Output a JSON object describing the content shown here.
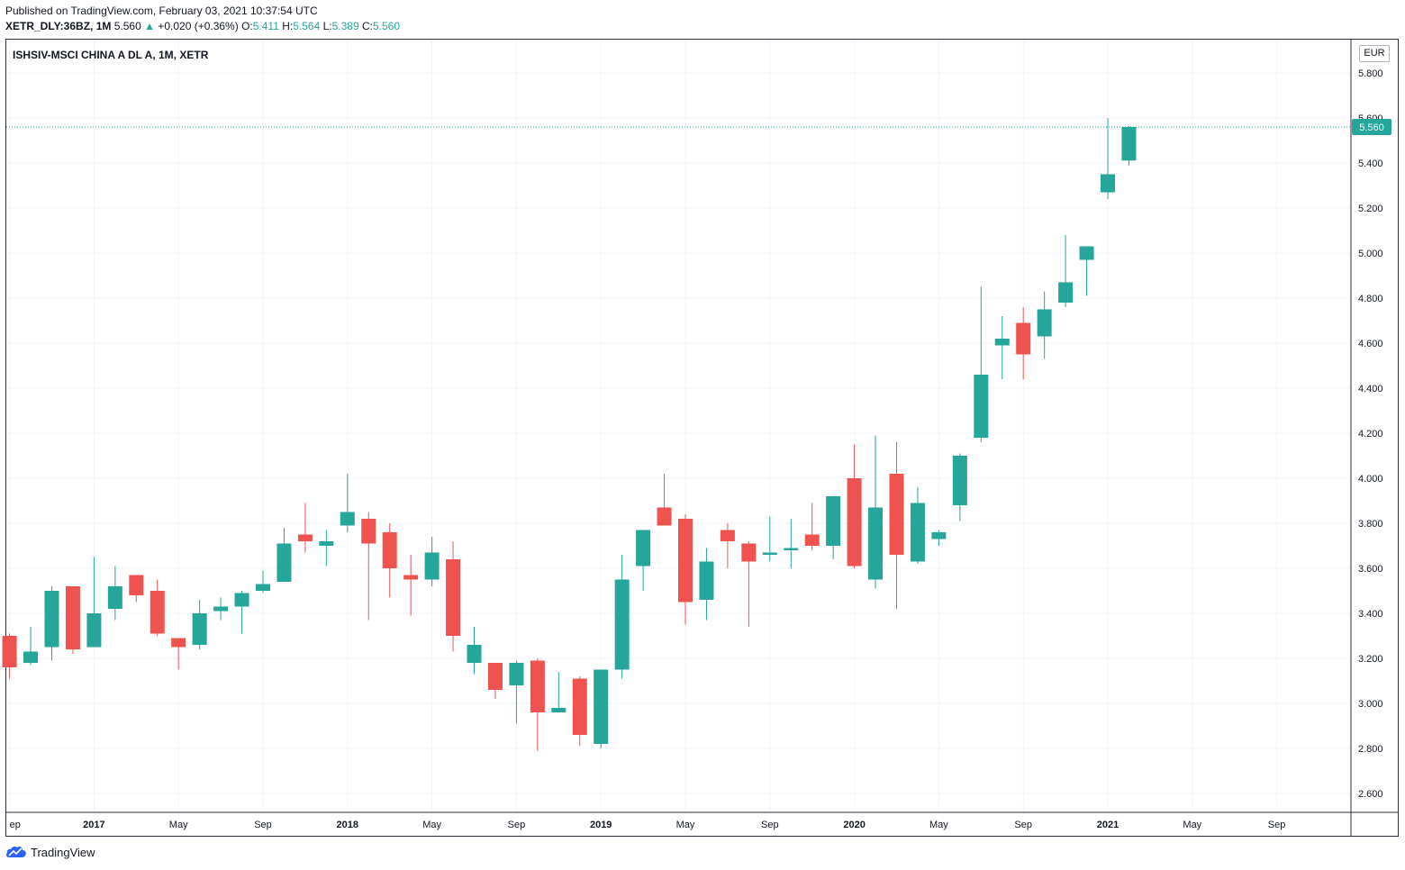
{
  "header": {
    "published": "Published on TradingView.com, February 03, 2021 10:37:54 UTC",
    "symbol": "XETR_DLY:36BZ, 1M",
    "last": "5.560",
    "change": "+0.020 (+0.36%)",
    "o_label": "O:",
    "o_value": "5.411",
    "h_label": "H:",
    "h_value": "5.564",
    "l_label": "L:",
    "l_value": "5.389",
    "c_label": "C:",
    "c_value": "5.560"
  },
  "footer": {
    "brand": "TradingView"
  },
  "colors": {
    "up": "#26a69a",
    "down": "#ef5350",
    "grid": "#f0f3fa",
    "axis": "#131722",
    "price_line": "#26a69a"
  },
  "chart_data": {
    "type": "candlestick",
    "title": "ISHSIV-MSCI CHINA A DL A, 1M, XETR",
    "currency": "EUR",
    "interval": "1M",
    "last_price": "5.560",
    "ylim": [
      2.5,
      5.9
    ],
    "y_ticks": [
      "2.600",
      "2.800",
      "3.000",
      "3.200",
      "3.400",
      "3.600",
      "3.800",
      "4.000",
      "4.200",
      "4.400",
      "4.600",
      "4.800",
      "5.000",
      "5.200",
      "5.400",
      "5.600",
      "5.800"
    ],
    "x_ticks": [
      {
        "label": "ep",
        "month": "2016-09",
        "bold": false
      },
      {
        "label": "2017",
        "month": "2017-01",
        "bold": true
      },
      {
        "label": "May",
        "month": "2017-05",
        "bold": false
      },
      {
        "label": "Sep",
        "month": "2017-09",
        "bold": false
      },
      {
        "label": "2018",
        "month": "2018-01",
        "bold": true
      },
      {
        "label": "May",
        "month": "2018-05",
        "bold": false
      },
      {
        "label": "Sep",
        "month": "2018-09",
        "bold": false
      },
      {
        "label": "2019",
        "month": "2019-01",
        "bold": true
      },
      {
        "label": "May",
        "month": "2019-05",
        "bold": false
      },
      {
        "label": "Sep",
        "month": "2019-09",
        "bold": false
      },
      {
        "label": "2020",
        "month": "2020-01",
        "bold": true
      },
      {
        "label": "May",
        "month": "2020-05",
        "bold": false
      },
      {
        "label": "Sep",
        "month": "2020-09",
        "bold": false
      },
      {
        "label": "2021",
        "month": "2021-01",
        "bold": true
      },
      {
        "label": "May",
        "month": "2021-05",
        "bold": false
      },
      {
        "label": "Sep",
        "month": "2021-09",
        "bold": false
      }
    ],
    "candles": [
      {
        "month": "2016-09",
        "o": 3.3,
        "h": 3.31,
        "l": 3.11,
        "c": 3.16
      },
      {
        "month": "2016-10",
        "o": 3.18,
        "h": 3.34,
        "l": 3.17,
        "c": 3.23
      },
      {
        "month": "2016-11",
        "o": 3.25,
        "h": 3.52,
        "l": 3.19,
        "c": 3.5
      },
      {
        "month": "2016-12",
        "o": 3.52,
        "h": 3.52,
        "l": 3.22,
        "c": 3.24
      },
      {
        "month": "2017-01",
        "o": 3.25,
        "h": 3.65,
        "l": 3.25,
        "c": 3.4
      },
      {
        "month": "2017-02",
        "o": 3.42,
        "h": 3.61,
        "l": 3.37,
        "c": 3.52
      },
      {
        "month": "2017-03",
        "o": 3.57,
        "h": 3.57,
        "l": 3.45,
        "c": 3.48
      },
      {
        "month": "2017-04",
        "o": 3.5,
        "h": 3.55,
        "l": 3.3,
        "c": 3.31
      },
      {
        "month": "2017-05",
        "o": 3.29,
        "h": 3.29,
        "l": 3.15,
        "c": 3.25
      },
      {
        "month": "2017-06",
        "o": 3.26,
        "h": 3.46,
        "l": 3.24,
        "c": 3.4
      },
      {
        "month": "2017-07",
        "o": 3.41,
        "h": 3.47,
        "l": 3.37,
        "c": 3.43
      },
      {
        "month": "2017-08",
        "o": 3.43,
        "h": 3.5,
        "l": 3.31,
        "c": 3.49
      },
      {
        "month": "2017-09",
        "o": 3.5,
        "h": 3.59,
        "l": 3.49,
        "c": 3.53
      },
      {
        "month": "2017-10",
        "o": 3.54,
        "h": 3.78,
        "l": 3.54,
        "c": 3.71
      },
      {
        "month": "2017-11",
        "o": 3.75,
        "h": 3.89,
        "l": 3.67,
        "c": 3.72
      },
      {
        "month": "2017-12",
        "o": 3.7,
        "h": 3.77,
        "l": 3.61,
        "c": 3.72
      },
      {
        "month": "2018-01",
        "o": 3.79,
        "h": 4.02,
        "l": 3.76,
        "c": 3.85
      },
      {
        "month": "2018-02",
        "o": 3.82,
        "h": 3.85,
        "l": 3.37,
        "c": 3.71
      },
      {
        "month": "2018-03",
        "o": 3.76,
        "h": 3.8,
        "l": 3.47,
        "c": 3.6
      },
      {
        "month": "2018-04",
        "o": 3.57,
        "h": 3.66,
        "l": 3.39,
        "c": 3.55
      },
      {
        "month": "2018-05",
        "o": 3.55,
        "h": 3.74,
        "l": 3.52,
        "c": 3.67
      },
      {
        "month": "2018-06",
        "o": 3.64,
        "h": 3.72,
        "l": 3.23,
        "c": 3.3
      },
      {
        "month": "2018-07",
        "o": 3.18,
        "h": 3.34,
        "l": 3.13,
        "c": 3.26
      },
      {
        "month": "2018-08",
        "o": 3.18,
        "h": 3.18,
        "l": 3.02,
        "c": 3.06
      },
      {
        "month": "2018-09",
        "o": 3.08,
        "h": 3.19,
        "l": 2.91,
        "c": 3.18
      },
      {
        "month": "2018-10",
        "o": 3.19,
        "h": 3.2,
        "l": 2.79,
        "c": 2.96
      },
      {
        "month": "2018-11",
        "o": 2.96,
        "h": 3.14,
        "l": 2.96,
        "c": 2.98
      },
      {
        "month": "2018-12",
        "o": 3.11,
        "h": 3.12,
        "l": 2.81,
        "c": 2.86
      },
      {
        "month": "2019-01",
        "o": 2.82,
        "h": 3.15,
        "l": 2.8,
        "c": 3.15
      },
      {
        "month": "2019-02",
        "o": 3.15,
        "h": 3.66,
        "l": 3.11,
        "c": 3.55
      },
      {
        "month": "2019-03",
        "o": 3.61,
        "h": 3.77,
        "l": 3.5,
        "c": 3.77
      },
      {
        "month": "2019-04",
        "o": 3.87,
        "h": 4.02,
        "l": 3.79,
        "c": 3.79
      },
      {
        "month": "2019-05",
        "o": 3.82,
        "h": 3.84,
        "l": 3.35,
        "c": 3.45
      },
      {
        "month": "2019-06",
        "o": 3.46,
        "h": 3.69,
        "l": 3.37,
        "c": 3.63
      },
      {
        "month": "2019-07",
        "o": 3.77,
        "h": 3.8,
        "l": 3.6,
        "c": 3.72
      },
      {
        "month": "2019-08",
        "o": 3.71,
        "h": 3.72,
        "l": 3.34,
        "c": 3.63
      },
      {
        "month": "2019-09",
        "o": 3.66,
        "h": 3.83,
        "l": 3.63,
        "c": 3.67
      },
      {
        "month": "2019-10",
        "o": 3.68,
        "h": 3.82,
        "l": 3.6,
        "c": 3.69
      },
      {
        "month": "2019-11",
        "o": 3.75,
        "h": 3.89,
        "l": 3.68,
        "c": 3.7
      },
      {
        "month": "2019-12",
        "o": 3.7,
        "h": 3.92,
        "l": 3.64,
        "c": 3.92
      },
      {
        "month": "2020-01",
        "o": 4.0,
        "h": 4.15,
        "l": 3.6,
        "c": 3.61
      },
      {
        "month": "2020-02",
        "o": 3.55,
        "h": 4.19,
        "l": 3.51,
        "c": 3.87
      },
      {
        "month": "2020-03",
        "o": 4.02,
        "h": 4.16,
        "l": 3.42,
        "c": 3.66
      },
      {
        "month": "2020-04",
        "o": 3.63,
        "h": 3.96,
        "l": 3.62,
        "c": 3.89
      },
      {
        "month": "2020-05",
        "o": 3.73,
        "h": 3.77,
        "l": 3.7,
        "c": 3.76
      },
      {
        "month": "2020-06",
        "o": 3.88,
        "h": 4.11,
        "l": 3.81,
        "c": 4.1
      },
      {
        "month": "2020-07",
        "o": 4.18,
        "h": 4.85,
        "l": 4.16,
        "c": 4.46
      },
      {
        "month": "2020-08",
        "o": 4.59,
        "h": 4.72,
        "l": 4.44,
        "c": 4.62
      },
      {
        "month": "2020-09",
        "o": 4.69,
        "h": 4.76,
        "l": 4.44,
        "c": 4.55
      },
      {
        "month": "2020-10",
        "o": 4.63,
        "h": 4.83,
        "l": 4.53,
        "c": 4.75
      },
      {
        "month": "2020-11",
        "o": 4.78,
        "h": 5.08,
        "l": 4.76,
        "c": 4.87
      },
      {
        "month": "2020-12",
        "o": 4.97,
        "h": 5.03,
        "l": 4.81,
        "c": 5.03
      },
      {
        "month": "2021-01",
        "o": 5.27,
        "h": 5.6,
        "l": 5.24,
        "c": 5.35
      },
      {
        "month": "2021-02",
        "o": 5.411,
        "h": 5.564,
        "l": 5.389,
        "c": 5.56
      }
    ]
  }
}
